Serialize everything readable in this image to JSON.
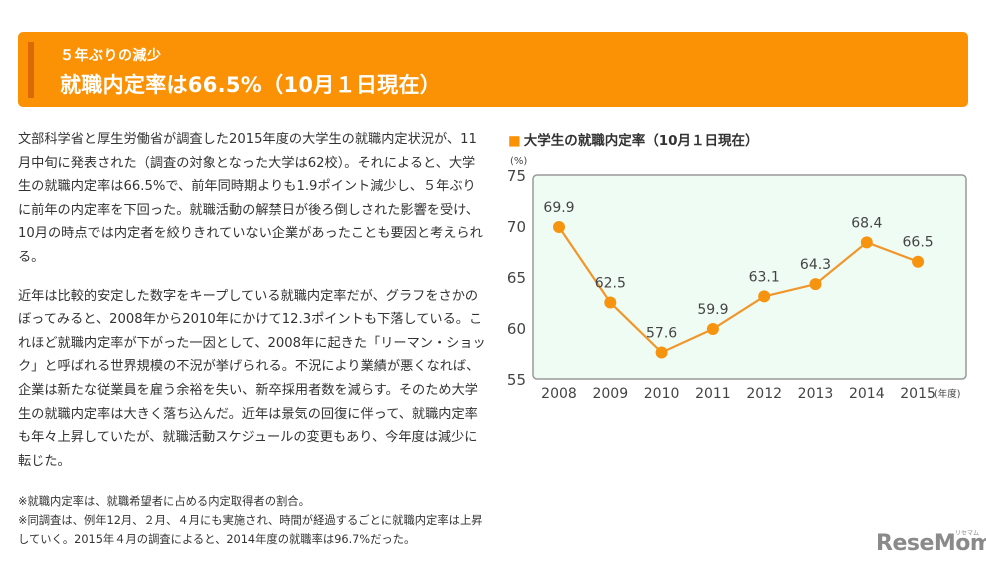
{
  "banner": {
    "subtitle": "５年ぶりの減少",
    "title": "就職内定率は66.5%（10月１日現在）"
  },
  "article": {
    "paragraphs": [
      "文部科学省と厚生労働省が調査した2015年度の大学生の就職内定状況が、11月中旬に発表された（調査の対象となった大学は62校）。それによると、大学生の就職内定率は66.5%で、前年同時期よりも1.9ポイント減少し、５年ぶりに前年の内定率を下回った。就職活動の解禁日が後ろ倒しされた影響を受け、10月の時点では内定者を絞りきれていない企業があったことも要因と考えられる。",
      "近年は比較的安定した数字をキープしている就職内定率だが、グラフをさかのぼってみると、2008年から2010年にかけて12.3ポイントも下落している。これほど就職内定率が下がった一因として、2008年に起きた「リーマン・ショック」と呼ばれる世界規模の不況が挙げられる。不況により業績が悪くなれば、企業は新たな従業員を雇う余裕を失い、新卒採用者数を減らす。そのため大学生の就職内定率は大きく落ち込んだ。近年は景気の回復に伴って、就職内定率も年々上昇していたが、就職活動スケジュールの変更もあり、今年度は減少に転じた。"
    ],
    "notes": [
      "※就職内定率は、就職希望者に占める内定取得者の割合。",
      "※同調査は、例年12月、２月、４月にも実施され、時間が経過するごとに就職内定率は上昇していく。2015年４月の調査によると、2014年度の就職率は96.7%だった。"
    ]
  },
  "chart": {
    "marker": "■",
    "title": "大学生の就職内定率（10月１日現在）",
    "y_unit": "(%)",
    "x_unit": "(年度)"
  },
  "logo": {
    "text": "ReseMom",
    "kana": "リセマム"
  },
  "colors": {
    "accent": "#fb9104",
    "banner_bar": "#d96a05",
    "plot_bg": "#effcf4",
    "line": "#f0962a"
  },
  "chart_data": {
    "type": "line",
    "title": "大学生の就職内定率（10月１日現在）",
    "xlabel": "(年度)",
    "ylabel": "(%)",
    "categories": [
      "2008",
      "2009",
      "2010",
      "2011",
      "2012",
      "2013",
      "2014",
      "2015"
    ],
    "values": [
      69.9,
      62.5,
      57.6,
      59.9,
      63.1,
      64.3,
      68.4,
      66.5
    ],
    "yticks": [
      55,
      60,
      65,
      70,
      75
    ],
    "ylim": [
      55,
      75
    ],
    "grid": false,
    "legend": "none",
    "data_labels": true
  }
}
